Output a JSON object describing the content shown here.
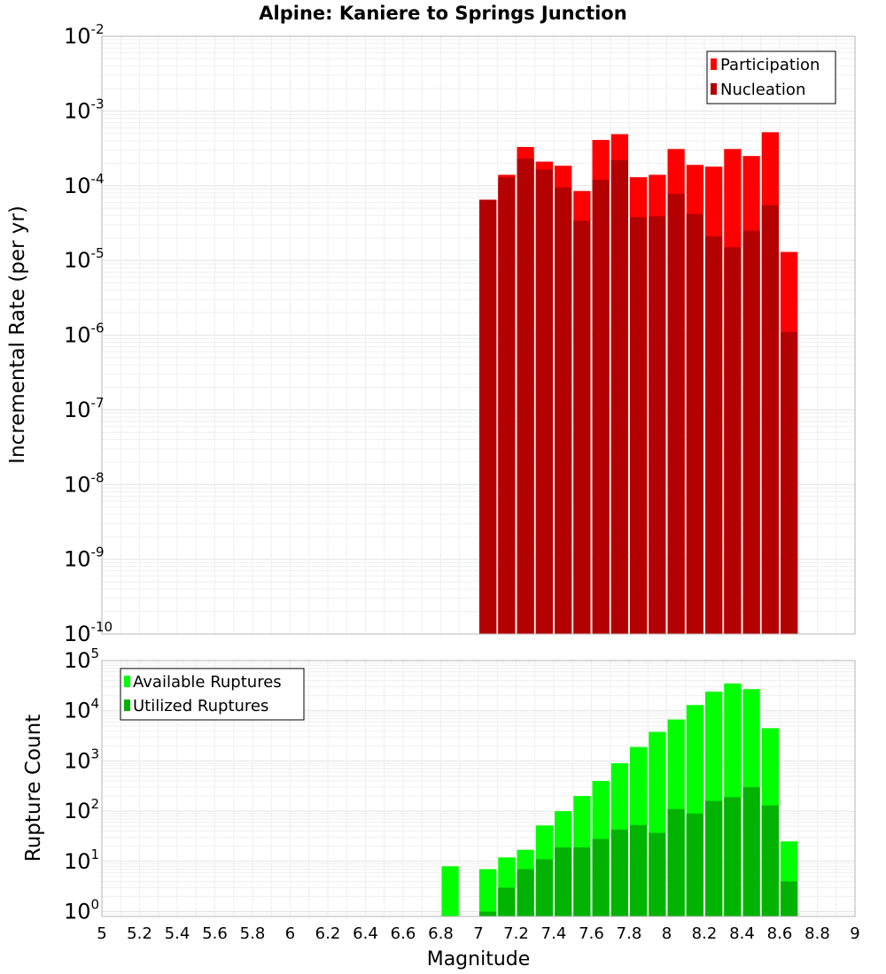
{
  "title": "Alpine: Kaniere to Springs Junction",
  "xlabel": "Magnitude",
  "x_ticks": [
    "5",
    "5.2",
    "5.4",
    "5.6",
    "5.8",
    "6",
    "6.2",
    "6.4",
    "6.6",
    "6.8",
    "7",
    "7.2",
    "7.4",
    "7.6",
    "7.8",
    "8",
    "8.2",
    "8.4",
    "8.6",
    "8.8",
    "9"
  ],
  "top_panel": {
    "ylabel": "Incremental Rate (per yr)",
    "y_exponents": [
      "-10",
      "-9",
      "-8",
      "-7",
      "-6",
      "-5",
      "-4",
      "-3",
      "-2"
    ],
    "legend": [
      "Participation",
      "Nucleation"
    ]
  },
  "bottom_panel": {
    "ylabel": "Rupture Count",
    "y_exponents": [
      "0",
      "1",
      "2",
      "3",
      "4",
      "5"
    ],
    "legend": [
      "Available Ruptures",
      "Utilized Ruptures"
    ]
  },
  "colors": {
    "participation": "#ff0000",
    "nucleation": "#b30000",
    "available": "#00ff00",
    "utilized": "#00b300"
  },
  "chart_data": [
    {
      "type": "bar",
      "title": "Alpine: Kaniere to Springs Junction",
      "xlabel": "Magnitude",
      "ylabel": "Incremental Rate (per yr)",
      "scale": "log",
      "xlim": [
        5,
        9
      ],
      "ylim": [
        1e-10,
        0.01
      ],
      "bin_width": 0.1,
      "x": [
        7.05,
        7.15,
        7.25,
        7.35,
        7.45,
        7.55,
        7.65,
        7.75,
        7.85,
        7.95,
        8.05,
        8.15,
        8.25,
        8.35,
        8.45,
        8.55,
        8.65
      ],
      "series": [
        {
          "name": "Participation",
          "values": [
            6.5e-05,
            0.00014,
            0.00033,
            0.00021,
            0.000185,
            8.5e-05,
            0.00041,
            0.00049,
            0.00013,
            0.00014,
            0.00031,
            0.00019,
            0.00018,
            0.00031,
            0.00025,
            0.00052,
            1.3e-05
          ]
        },
        {
          "name": "Nucleation",
          "values": [
            6.5e-05,
            0.00013,
            0.00023,
            0.000165,
            9.5e-05,
            3.4e-05,
            0.00012,
            0.00022,
            3.8e-05,
            3.9e-05,
            7.8e-05,
            4.2e-05,
            2.1e-05,
            1.5e-05,
            2.5e-05,
            5.5e-05,
            1.1e-06
          ]
        }
      ],
      "grid": true,
      "legend_position": "top-right"
    },
    {
      "type": "bar",
      "xlabel": "Magnitude",
      "ylabel": "Rupture Count",
      "scale": "log",
      "xlim": [
        5,
        9
      ],
      "ylim": [
        0.8,
        100000.0
      ],
      "bin_width": 0.1,
      "x": [
        6.85,
        7.05,
        7.15,
        7.25,
        7.35,
        7.45,
        7.55,
        7.65,
        7.75,
        7.85,
        7.95,
        8.05,
        8.15,
        8.25,
        8.35,
        8.45,
        8.55,
        8.65
      ],
      "series": [
        {
          "name": "Available Ruptures",
          "values": [
            8,
            7,
            12,
            17,
            52,
            100,
            200,
            400,
            900,
            1900,
            3800,
            6700,
            13000,
            24000,
            35000,
            27000,
            4500,
            25
          ]
        },
        {
          "name": "Utilized Ruptures",
          "values": [
            0,
            1,
            3,
            7,
            11,
            19,
            19,
            28,
            43,
            53,
            37,
            110,
            90,
            160,
            190,
            300,
            130,
            4
          ]
        }
      ],
      "grid": true,
      "legend_position": "top-left"
    }
  ]
}
